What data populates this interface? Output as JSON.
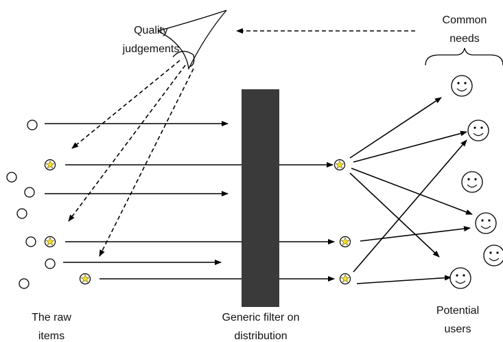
{
  "labels": {
    "quality": [
      "Quality",
      "judgements"
    ],
    "needs": [
      "Common",
      "needs"
    ],
    "raw_items": [
      "The raw",
      "items"
    ],
    "filter": [
      "Generic filter on",
      "distribution"
    ],
    "users": [
      "Potential",
      "users"
    ]
  }
}
